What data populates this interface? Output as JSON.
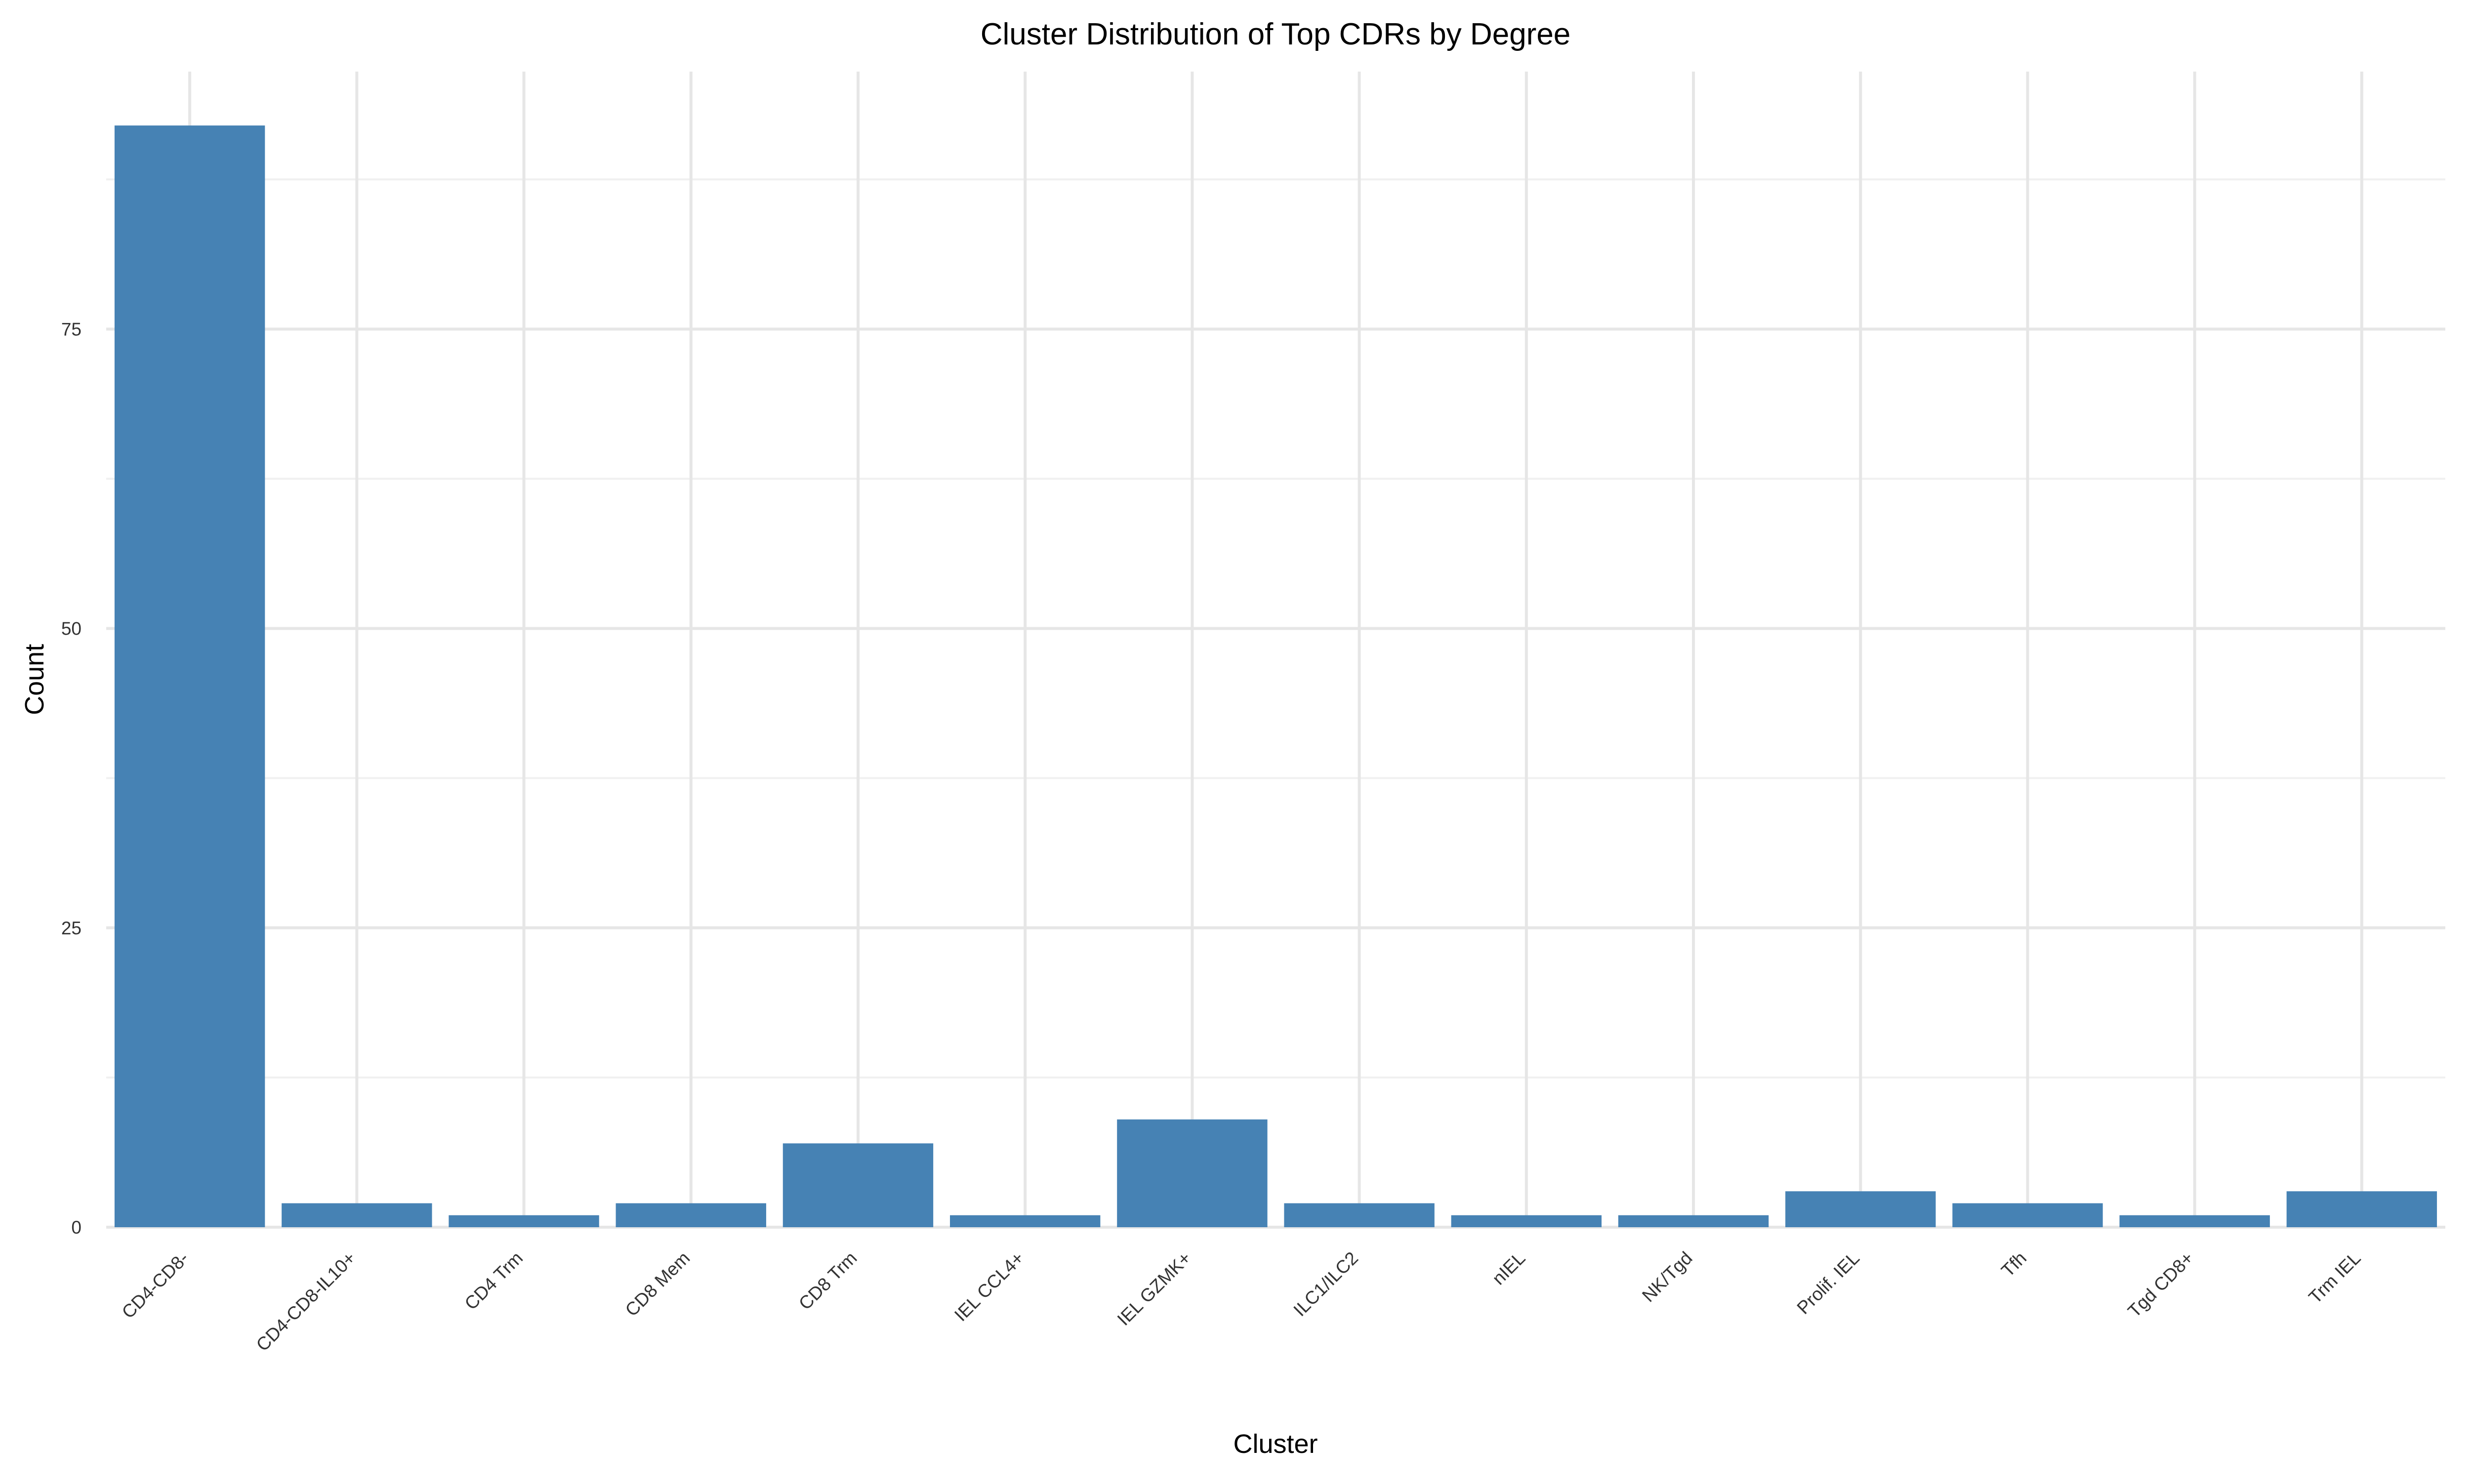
{
  "chart_data": {
    "type": "bar",
    "title": "Cluster Distribution of Top CDRs by Degree",
    "xlabel": "Cluster",
    "ylabel": "Count",
    "categories": [
      "CD4-CD8-",
      "CD4-CD8-IL10+",
      "CD4 Trm",
      "CD8 Mem",
      "CD8 Trm",
      "IEL CCL4+",
      "IEL GZMK+",
      "ILC1/ILC2",
      "nIEL",
      "NK/Tgd",
      "Prolif. IEL",
      "Tfh",
      "Tgd CD8+",
      "Trm IEL"
    ],
    "values": [
      92,
      2,
      1,
      2,
      7,
      1,
      9,
      2,
      1,
      1,
      3,
      2,
      1,
      3
    ],
    "ylim": [
      0,
      96.5
    ],
    "yticks": [
      0,
      25,
      50,
      75
    ],
    "grid": true,
    "legend": "none",
    "bar_color": "#4682b4"
  }
}
